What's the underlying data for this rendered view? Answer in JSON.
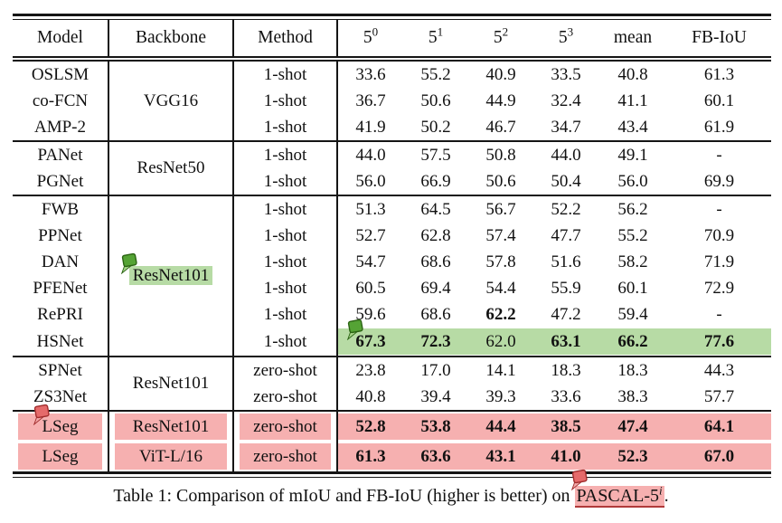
{
  "caption": {
    "prefix": "Table 1: Comparison of mIoU and FB-IoU (higher is better) on ",
    "highlight": "PASCAL-5",
    "highlight_sup": "i",
    "suffix": "."
  },
  "icons": {
    "annotation_flag": "flag-marker-icon"
  },
  "colors": {
    "rule": "#151515",
    "green_highlight": "#b7dba5",
    "pink_highlight": "#f6b0b0",
    "caption_underline": "#b03a3a",
    "flag": {
      "green": {
        "body": "#55a335",
        "tail": "#a6d589",
        "stroke": "#2a6312"
      },
      "red": {
        "body": "#e56a6a",
        "tail": "#f2a8a8",
        "stroke": "#a02c2c"
      }
    }
  },
  "table": {
    "header": [
      {
        "label": "Model"
      },
      {
        "label": "Backbone"
      },
      {
        "label": "Method"
      },
      {
        "label": "5",
        "sup": "0"
      },
      {
        "label": "5",
        "sup": "1"
      },
      {
        "label": "5",
        "sup": "2"
      },
      {
        "label": "5",
        "sup": "3"
      },
      {
        "label": "mean"
      },
      {
        "label": "FB-IoU"
      }
    ],
    "groups": [
      {
        "backbone": "VGG16",
        "rows": [
          {
            "model": "OSLSM",
            "method": "1-shot",
            "scores": [
              "33.6",
              "55.2",
              "40.9",
              "33.5",
              "40.8",
              "61.3"
            ]
          },
          {
            "model": "co-FCN",
            "method": "1-shot",
            "scores": [
              "36.7",
              "50.6",
              "44.9",
              "32.4",
              "41.1",
              "60.1"
            ]
          },
          {
            "model": "AMP-2",
            "method": "1-shot",
            "scores": [
              "41.9",
              "50.2",
              "46.7",
              "34.7",
              "43.4",
              "61.9"
            ]
          }
        ]
      },
      {
        "backbone": "ResNet50",
        "rows": [
          {
            "model": "PANet",
            "method": "1-shot",
            "scores": [
              "44.0",
              "57.5",
              "50.8",
              "44.0",
              "49.1",
              "-"
            ]
          },
          {
            "model": "PGNet",
            "method": "1-shot",
            "scores": [
              "56.0",
              "66.9",
              "50.6",
              "50.4",
              "56.0",
              "69.9"
            ]
          }
        ]
      },
      {
        "backbone": "ResNet101",
        "backbone_highlight": "green",
        "backbone_flag": "green",
        "rows": [
          {
            "model": "FWB",
            "method": "1-shot",
            "scores": [
              "51.3",
              "64.5",
              "56.7",
              "52.2",
              "56.2",
              "-"
            ]
          },
          {
            "model": "PPNet",
            "method": "1-shot",
            "scores": [
              "52.7",
              "62.8",
              "57.4",
              "47.7",
              "55.2",
              "70.9"
            ]
          },
          {
            "model": "DAN",
            "method": "1-shot",
            "scores": [
              "54.7",
              "68.6",
              "57.8",
              "51.6",
              "58.2",
              "71.9"
            ]
          },
          {
            "model": "PFENet",
            "method": "1-shot",
            "scores": [
              "60.5",
              "69.4",
              "54.4",
              "55.9",
              "60.1",
              "72.9"
            ]
          },
          {
            "model": "RePRI",
            "method": "1-shot",
            "scores": [
              "59.6",
              "68.6",
              "62.2",
              "47.2",
              "59.4",
              "-"
            ],
            "bold": [
              2
            ]
          },
          {
            "model": "HSNet",
            "method": "1-shot",
            "scores": [
              "67.3",
              "72.3",
              "62.0",
              "63.1",
              "66.2",
              "77.6"
            ],
            "bold": [
              0,
              1,
              3,
              4,
              5
            ],
            "scores_highlight": "green",
            "flag": {
              "color": "green",
              "position": "scores"
            }
          }
        ]
      },
      {
        "backbone": "ResNet101",
        "rows": [
          {
            "model": "SPNet",
            "method": "zero-shot",
            "scores": [
              "23.8",
              "17.0",
              "14.1",
              "18.3",
              "18.3",
              "44.3"
            ]
          },
          {
            "model": "ZS3Net",
            "method": "zero-shot",
            "scores": [
              "40.8",
              "39.4",
              "39.3",
              "33.6",
              "38.3",
              "57.7"
            ]
          }
        ]
      },
      {
        "rows": [
          {
            "model": "LSeg",
            "backbone": "ResNet101",
            "method": "zero-shot",
            "scores": [
              "52.8",
              "53.8",
              "44.4",
              "38.5",
              "47.4",
              "64.1"
            ],
            "bold": [
              0,
              1,
              2,
              3,
              4,
              5
            ],
            "row_highlight": "pink",
            "flag": {
              "color": "red",
              "position": "model"
            }
          },
          {
            "model": "LSeg",
            "backbone": "ViT-L/16",
            "method": "zero-shot",
            "scores": [
              "61.3",
              "63.6",
              "43.1",
              "41.0",
              "52.3",
              "67.0"
            ],
            "bold": [
              0,
              1,
              2,
              3,
              4,
              5
            ],
            "row_highlight": "pink"
          }
        ]
      }
    ]
  }
}
